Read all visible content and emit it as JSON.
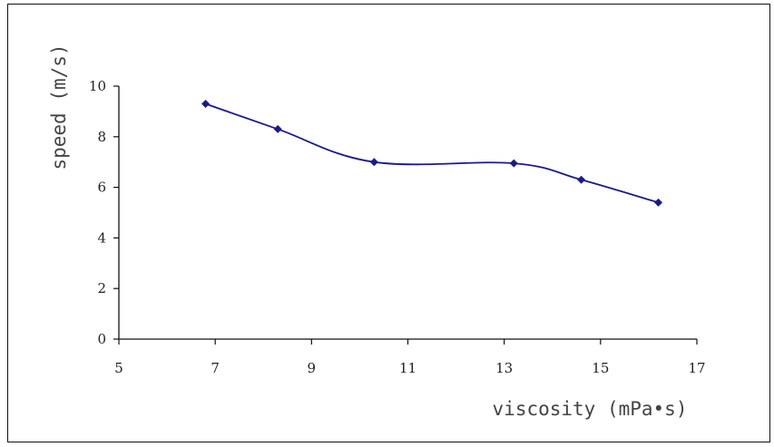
{
  "chart_data": {
    "type": "line",
    "title": "",
    "xlabel": "viscosity (mPa•s)",
    "ylabel": "speed (m/s)",
    "xlim": [
      5,
      17
    ],
    "ylim": [
      0,
      10
    ],
    "x_ticks": [
      5,
      7,
      9,
      11,
      13,
      15,
      17
    ],
    "y_ticks": [
      0,
      2,
      4,
      6,
      8,
      10
    ],
    "smooth": true,
    "marker": "diamond",
    "grid": false,
    "legend": "none",
    "series": [
      {
        "color": "#1a1a8c",
        "points": [
          {
            "x": 6.8,
            "y": 9.3
          },
          {
            "x": 8.3,
            "y": 8.3
          },
          {
            "x": 10.3,
            "y": 7.0
          },
          {
            "x": 13.2,
            "y": 6.95
          },
          {
            "x": 14.6,
            "y": 6.3
          },
          {
            "x": 16.2,
            "y": 5.4
          }
        ]
      }
    ]
  }
}
